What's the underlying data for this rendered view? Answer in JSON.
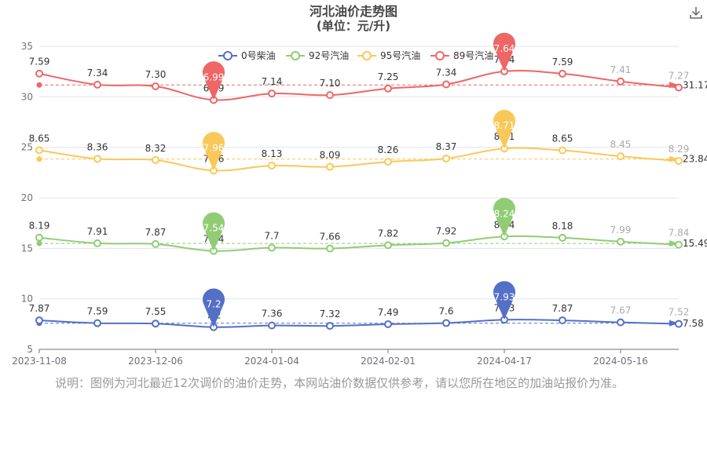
{
  "page": {
    "title_line1": "河北油价走势图",
    "title_line2": "(单位：元/升)",
    "note": "说明：图例为河北最近12次调价的油价走势，本网站油价数据仅供参考，请以您所在地区的加油站报价为准。"
  },
  "toolbar": {
    "download_icon": "download-icon"
  },
  "chart_data": {
    "type": "line",
    "title": "河北油价走势图",
    "subtitle": "(单位：元/升)",
    "x_tick_labels": [
      "2023-11-08",
      "2023-12-06",
      "2024-01-04",
      "2024-02-01",
      "2024-04-17",
      "2024-05-16"
    ],
    "ylim": [
      5,
      35
    ],
    "y_ticks": [
      5,
      10,
      15,
      20,
      25,
      30,
      35
    ],
    "y_axis_note": "stacked chart: each series is offset upward by the cumulative values of the series below it",
    "legend_position": "top-center",
    "series": [
      {
        "name": "0号柴油",
        "color": "#5470c6",
        "values": [
          7.87,
          7.59,
          7.55,
          7.2,
          7.36,
          7.32,
          7.49,
          7.6,
          7.93,
          7.87,
          7.67,
          7.52
        ],
        "stacked_values": [
          7.87,
          7.59,
          7.55,
          7.2,
          7.36,
          7.32,
          7.49,
          7.6,
          7.93,
          7.87,
          7.67,
          7.52
        ],
        "labels": [
          "7.87",
          "7.59",
          "7.55",
          "7.2",
          "7.36",
          "7.32",
          "7.49",
          "7.6",
          "7.93",
          "7.87",
          "7.67",
          "7.52"
        ],
        "min_pin": "7.2",
        "max_pin": "7.93",
        "average_end": "7.58"
      },
      {
        "name": "92号汽油",
        "color": "#91cc75",
        "values": [
          8.19,
          7.91,
          7.87,
          7.54,
          7.7,
          7.66,
          7.82,
          7.92,
          8.24,
          8.18,
          7.99,
          7.84
        ],
        "stacked_values": [
          16.06,
          15.5,
          15.42,
          14.74,
          15.06,
          14.98,
          15.31,
          15.52,
          16.17,
          16.05,
          15.66,
          15.36
        ],
        "labels": [
          "8.19",
          "7.91",
          "7.87",
          "7.54",
          "7.7",
          "7.66",
          "7.82",
          "7.92",
          "8.24",
          "8.18",
          "7.99",
          "7.84"
        ],
        "max_pin": "8.24",
        "min_pin": "7.54",
        "average_end": "15.49"
      },
      {
        "name": "95号汽油",
        "color": "#fac858",
        "values": [
          8.65,
          8.36,
          8.32,
          7.96,
          8.13,
          8.09,
          8.26,
          8.37,
          8.71,
          8.65,
          8.45,
          8.29
        ],
        "stacked_values": [
          24.71,
          23.86,
          23.74,
          22.7,
          23.19,
          23.07,
          23.57,
          23.89,
          24.88,
          24.7,
          24.11,
          23.65
        ],
        "labels": [
          "8.65",
          "8.36",
          "8.32",
          "7.96",
          "8.13",
          "8.09",
          "8.26",
          "8.37",
          "8.71",
          "8.65",
          "8.45",
          "8.29"
        ],
        "max_pin": "8.71",
        "min_pin": "7.96",
        "average_end": "23.84"
      },
      {
        "name": "89号汽油",
        "color": "#ee6666",
        "values": [
          7.59,
          7.34,
          7.3,
          6.99,
          7.14,
          7.1,
          7.25,
          7.34,
          7.64,
          7.59,
          7.41,
          7.27
        ],
        "stacked_values": [
          32.3,
          31.2,
          31.04,
          29.69,
          30.33,
          30.17,
          30.82,
          31.23,
          32.52,
          32.29,
          31.52,
          30.92
        ],
        "labels": [
          "7.59",
          "7.34",
          "7.30",
          "6.99",
          "7.14",
          "7.10",
          "7.25",
          "7.34",
          "7.64",
          "7.59",
          "7.41",
          "7.27"
        ],
        "max_pin": "7.64",
        "min_pin": "6.99",
        "average_end": "31.17"
      }
    ]
  }
}
